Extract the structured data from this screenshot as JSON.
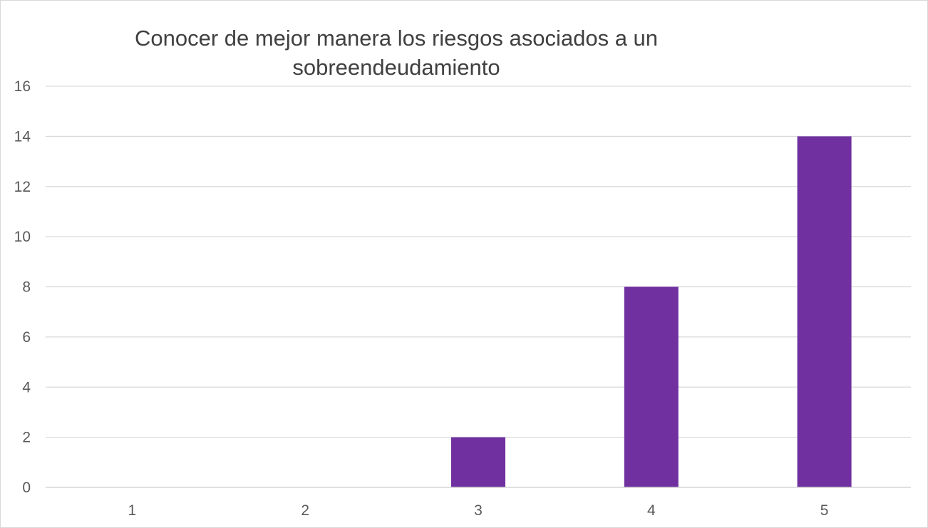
{
  "chart_data": {
    "type": "bar",
    "title": "Conocer de mejor manera los riesgos asociados a un sobreendeudamiento",
    "categories": [
      "1",
      "2",
      "3",
      "4",
      "5"
    ],
    "values": [
      0,
      0,
      2,
      8,
      14
    ],
    "xlabel": "",
    "ylabel": "",
    "ylim": [
      0,
      16
    ],
    "yticks": [
      "0",
      "2",
      "4",
      "6",
      "8",
      "10",
      "12",
      "14",
      "16"
    ],
    "grid": true,
    "legend": "none",
    "colors": {
      "bar": "#7030a0",
      "grid": "#d9d9d9",
      "axis_text": "#595959",
      "title": "#404040"
    }
  }
}
